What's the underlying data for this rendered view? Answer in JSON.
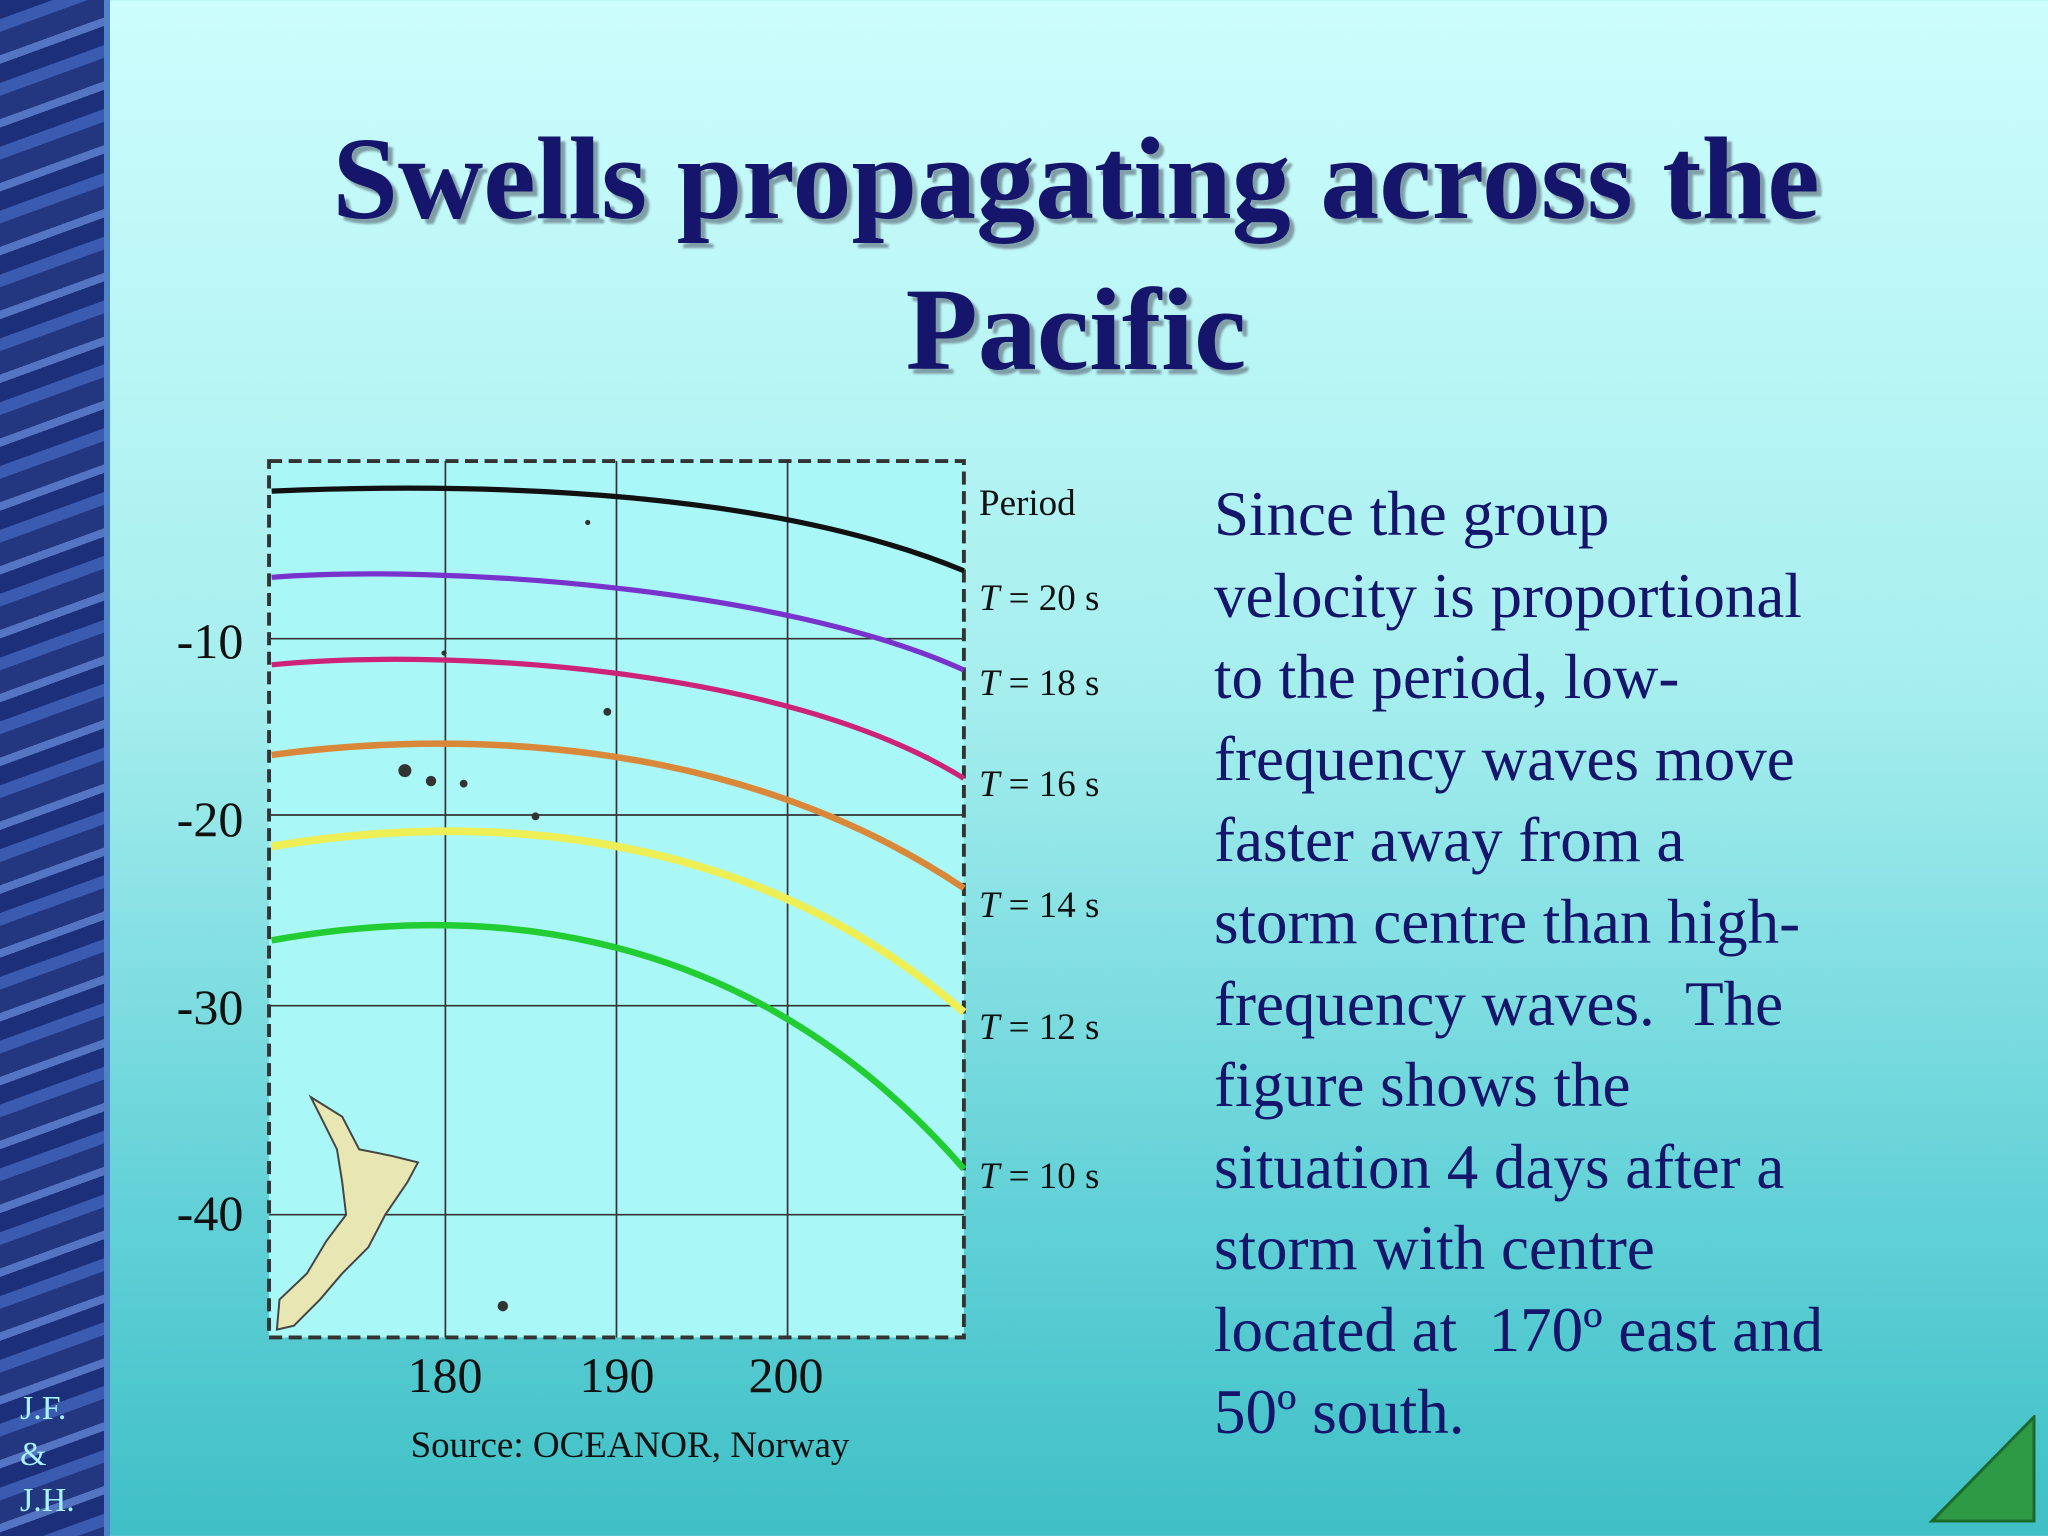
{
  "title": {
    "lines": [
      "Swells propagating across the",
      "Pacific"
    ]
  },
  "figure": {
    "y_labels": [
      "-10",
      "-20",
      "-30",
      "-40"
    ],
    "x_labels": [
      "180",
      "190",
      "200"
    ],
    "legend_title": "Period",
    "period_labels": [
      {
        "symbol": "T",
        "rest": "= 20 s"
      },
      {
        "symbol": "T",
        "rest": "= 18 s"
      },
      {
        "symbol": "T",
        "rest": "= 16 s"
      },
      {
        "symbol": "T",
        "rest": "= 14 s"
      },
      {
        "symbol": "T",
        "rest": "= 12 s"
      },
      {
        "symbol": "T",
        "rest": "= 10 s"
      }
    ],
    "source": "Source: OCEANOR, Norway"
  },
  "body": {
    "lines": [
      "Since the group",
      "velocity is proportional",
      "to the period, low-",
      "frequency waves move",
      "faster away from a",
      "storm centre than high-",
      "frequency waves.  The",
      "figure shows the",
      "situation 4 days after a",
      "storm with centre",
      "located at  170º east and",
      "50º south."
    ]
  },
  "footer": {
    "lines": [
      "J.F.",
      "&",
      "J.H."
    ]
  }
}
